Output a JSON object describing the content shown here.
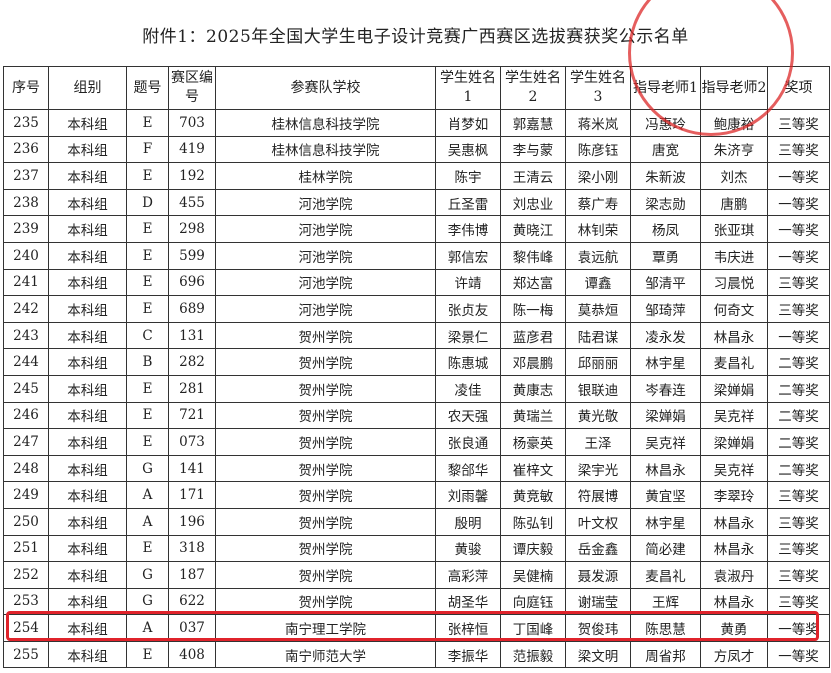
{
  "header": {
    "title": "附件1：2025年全国大学生电子设计竞赛广西赛区选拔赛获奖公示名单"
  },
  "table": {
    "columns": [
      "序号",
      "组别",
      "题号",
      "赛区编号",
      "参赛队学校",
      "学生姓名1",
      "学生姓名2",
      "学生姓名3",
      "指导老师1",
      "指导老师2",
      "奖项"
    ],
    "rows": [
      [
        "235",
        "本科组",
        "E",
        "703",
        "桂林信息科技学院",
        "肖梦如",
        "郭嘉慧",
        "蒋米岚",
        "冯惠玲",
        "鲍康裕",
        "三等奖"
      ],
      [
        "236",
        "本科组",
        "F",
        "419",
        "桂林信息科技学院",
        "吴惠枫",
        "李与蒙",
        "陈彦钰",
        "唐宽",
        "朱济亨",
        "三等奖"
      ],
      [
        "237",
        "本科组",
        "E",
        "192",
        "桂林学院",
        "陈宇",
        "王清云",
        "梁小刚",
        "朱新波",
        "刘杰",
        "一等奖"
      ],
      [
        "238",
        "本科组",
        "D",
        "455",
        "河池学院",
        "丘圣雷",
        "刘忠业",
        "蔡广寿",
        "梁志勋",
        "唐鹏",
        "一等奖"
      ],
      [
        "239",
        "本科组",
        "E",
        "298",
        "河池学院",
        "李伟博",
        "黄晓江",
        "林钊荣",
        "杨凤",
        "张亚琪",
        "一等奖"
      ],
      [
        "240",
        "本科组",
        "E",
        "599",
        "河池学院",
        "郭信宏",
        "黎伟峰",
        "袁远航",
        "覃勇",
        "韦庆进",
        "一等奖"
      ],
      [
        "241",
        "本科组",
        "E",
        "696",
        "河池学院",
        "许靖",
        "郑达富",
        "谭鑫",
        "邹清平",
        "习晨悦",
        "三等奖"
      ],
      [
        "242",
        "本科组",
        "E",
        "689",
        "河池学院",
        "张贞友",
        "陈一梅",
        "莫恭烜",
        "邹琦萍",
        "何奇文",
        "三等奖"
      ],
      [
        "243",
        "本科组",
        "C",
        "131",
        "贺州学院",
        "梁景仁",
        "蓝彦君",
        "陆君谋",
        "凌永发",
        "林昌永",
        "一等奖"
      ],
      [
        "244",
        "本科组",
        "B",
        "282",
        "贺州学院",
        "陈惠城",
        "邓晨鹏",
        "邱丽丽",
        "林宇星",
        "麦昌礼",
        "二等奖"
      ],
      [
        "245",
        "本科组",
        "E",
        "281",
        "贺州学院",
        "凌佳",
        "黄康志",
        "银联迪",
        "岑春连",
        "梁婵娟",
        "二等奖"
      ],
      [
        "246",
        "本科组",
        "E",
        "721",
        "贺州学院",
        "农天强",
        "黄瑞兰",
        "黄光敬",
        "梁婵娟",
        "吴克祥",
        "二等奖"
      ],
      [
        "247",
        "本科组",
        "E",
        "073",
        "贺州学院",
        "张良通",
        "杨豪英",
        "王泽",
        "吴克祥",
        "梁婵娟",
        "二等奖"
      ],
      [
        "248",
        "本科组",
        "G",
        "141",
        "贺州学院",
        "黎郃华",
        "崔梓文",
        "梁宇光",
        "林昌永",
        "吴克祥",
        "二等奖"
      ],
      [
        "249",
        "本科组",
        "A",
        "171",
        "贺州学院",
        "刘雨馨",
        "黄竞敏",
        "符展博",
        "黄宜坚",
        "李翠玲",
        "三等奖"
      ],
      [
        "250",
        "本科组",
        "A",
        "196",
        "贺州学院",
        "殷明",
        "陈弘钊",
        "叶文权",
        "林宇星",
        "林昌永",
        "三等奖"
      ],
      [
        "251",
        "本科组",
        "E",
        "318",
        "贺州学院",
        "黄骏",
        "谭庆毅",
        "岳金鑫",
        "简必建",
        "林昌永",
        "三等奖"
      ],
      [
        "252",
        "本科组",
        "G",
        "187",
        "贺州学院",
        "高彩萍",
        "吴健楠",
        "聂发源",
        "麦昌礼",
        "袁淑丹",
        "三等奖"
      ],
      [
        "253",
        "本科组",
        "G",
        "622",
        "贺州学院",
        "胡圣华",
        "向庭钰",
        "谢瑞莹",
        "王辉",
        "林昌永",
        "三等奖"
      ],
      [
        "254",
        "本科组",
        "A",
        "037",
        "南宁理工学院",
        "张梓恒",
        "丁国峰",
        "贺俊玮",
        "陈思慧",
        "黄勇",
        "一等奖"
      ],
      [
        "255",
        "本科组",
        "E",
        "408",
        "南宁师范大学",
        "李振华",
        "范振毅",
        "梁文明",
        "周省邦",
        "方凤才",
        "一等奖"
      ]
    ]
  }
}
